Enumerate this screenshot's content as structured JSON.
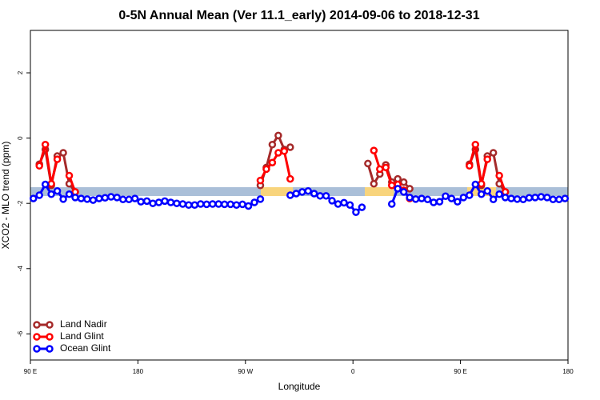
{
  "chart_data": {
    "type": "line",
    "title": "0-5N Annual Mean (Ver 11.1_early)   2014-09-06 to 2018-12-31",
    "x_label": "Longitude",
    "y_label": "XCO2 - MLO trend (ppm)",
    "xlim": [
      -270,
      180
    ],
    "ylim": [
      -6.8,
      3.3
    ],
    "xticks": [
      {
        "value": -270,
        "label": "90 E"
      },
      {
        "value": -180,
        "label": "180"
      },
      {
        "value": -90,
        "label": "90 W"
      },
      0,
      {
        "value": 90,
        "label": "90 E"
      },
      {
        "value": 180,
        "label": "180"
      }
    ],
    "yticks": [
      -6,
      -4,
      -2,
      0,
      2
    ],
    "legend": "bottom-left",
    "x": [
      -267.5,
      -262.5,
      -257.5,
      -252.5,
      -247.5,
      -242.5,
      -237.5,
      -232.5,
      -227.5,
      -222.5,
      -217.5,
      -212.5,
      -207.5,
      -202.5,
      -197.5,
      -192.5,
      -187.5,
      -182.5,
      -177.5,
      -172.5,
      -167.5,
      -162.5,
      -157.5,
      -152.5,
      -147.5,
      -142.5,
      -137.5,
      -132.5,
      -127.5,
      -122.5,
      -117.5,
      -112.5,
      -107.5,
      -102.5,
      -97.5,
      -92.5,
      -87.5,
      -82.5,
      -77.5,
      -72.5,
      -67.5,
      -62.5,
      -57.5,
      -52.5,
      -47.5,
      -42.5,
      -37.5,
      -32.5,
      -27.5,
      -22.5,
      -17.5,
      -12.5,
      -7.5,
      -2.5,
      2.5,
      7.5,
      12.5,
      17.5,
      22.5,
      27.5,
      32.5,
      37.5,
      42.5,
      47.5,
      52.5,
      57.5,
      62.5,
      67.5,
      72.5,
      77.5,
      82.5,
      87.5,
      92.5,
      97.5,
      102.5,
      107.5,
      112.5,
      117.5,
      122.5,
      127.5,
      132.5,
      137.5,
      142.5,
      147.5,
      152.5,
      157.5,
      162.5,
      167.5,
      172.5,
      177.5
    ],
    "series": [
      {
        "name": "Land Nadir",
        "color": "#a52a2a",
        "values": [
          null,
          -0.8,
          -0.35,
          -1.45,
          -0.55,
          -0.45,
          -1.4,
          -1.65,
          null,
          null,
          null,
          null,
          null,
          null,
          null,
          null,
          null,
          null,
          null,
          null,
          null,
          null,
          null,
          null,
          null,
          null,
          null,
          null,
          null,
          null,
          null,
          null,
          null,
          null,
          null,
          null,
          null,
          null,
          -1.45,
          -0.9,
          -0.2,
          0.08,
          -0.35,
          -0.28,
          null,
          null,
          null,
          null,
          null,
          null,
          null,
          null,
          null,
          null,
          null,
          null,
          -0.78,
          -1.4,
          -1.1,
          -0.82,
          -1.35,
          -1.25,
          -1.35,
          -1.55,
          null,
          null,
          null,
          null,
          null,
          null,
          null,
          null,
          null,
          -0.8,
          -0.35,
          -1.45,
          -0.55,
          -0.45,
          -1.4,
          -1.65,
          null,
          null,
          null,
          null,
          null,
          null,
          null,
          null,
          null,
          null
        ]
      },
      {
        "name": "Land Glint",
        "color": "#ff0000",
        "values": [
          null,
          -0.85,
          -0.2,
          -1.4,
          -0.65,
          null,
          -1.15,
          -1.65,
          null,
          null,
          null,
          null,
          null,
          null,
          null,
          null,
          null,
          null,
          null,
          null,
          null,
          null,
          null,
          null,
          null,
          null,
          null,
          null,
          null,
          null,
          null,
          null,
          null,
          null,
          null,
          null,
          null,
          null,
          -1.3,
          -0.95,
          -0.75,
          -0.45,
          -0.4,
          -1.25,
          null,
          null,
          null,
          null,
          null,
          null,
          null,
          null,
          null,
          null,
          null,
          null,
          null,
          -0.38,
          -0.95,
          -0.9,
          -1.45,
          -1.42,
          -1.6,
          -1.85,
          null,
          null,
          null,
          null,
          null,
          null,
          null,
          null,
          null,
          -0.85,
          -0.2,
          -1.4,
          -0.65,
          null,
          -1.15,
          -1.65,
          null,
          null,
          null,
          null,
          null,
          null,
          null,
          null,
          null,
          null
        ]
      },
      {
        "name": "Ocean Glint",
        "color": "#0000ff",
        "values": [
          -1.85,
          -1.75,
          -1.42,
          -1.72,
          -1.62,
          -1.87,
          -1.72,
          -1.82,
          -1.85,
          -1.87,
          -1.9,
          -1.85,
          -1.83,
          -1.8,
          -1.82,
          -1.88,
          -1.88,
          -1.85,
          -1.95,
          -1.93,
          -2.0,
          -1.97,
          -1.93,
          -1.97,
          -2.0,
          -2.02,
          -2.05,
          -2.05,
          -2.02,
          -2.03,
          -2.02,
          -2.02,
          -2.03,
          -2.03,
          -2.05,
          -2.03,
          -2.08,
          -1.97,
          -1.87,
          null,
          null,
          null,
          null,
          -1.75,
          -1.7,
          -1.65,
          -1.62,
          -1.7,
          -1.77,
          -1.77,
          -1.92,
          -2.02,
          -1.98,
          -2.05,
          -2.27,
          -2.12,
          null,
          null,
          null,
          null,
          -2.02,
          -1.55,
          -1.65,
          -1.82,
          -1.87,
          -1.85,
          -1.88,
          -1.97,
          -1.95,
          -1.78,
          -1.85,
          -1.95,
          -1.82,
          -1.75,
          -1.42,
          -1.72,
          -1.62,
          -1.88,
          -1.72,
          -1.82,
          -1.85,
          -1.87,
          -1.88,
          -1.83,
          -1.82,
          -1.8,
          -1.82,
          -1.88,
          -1.88,
          -1.85
        ]
      }
    ]
  }
}
